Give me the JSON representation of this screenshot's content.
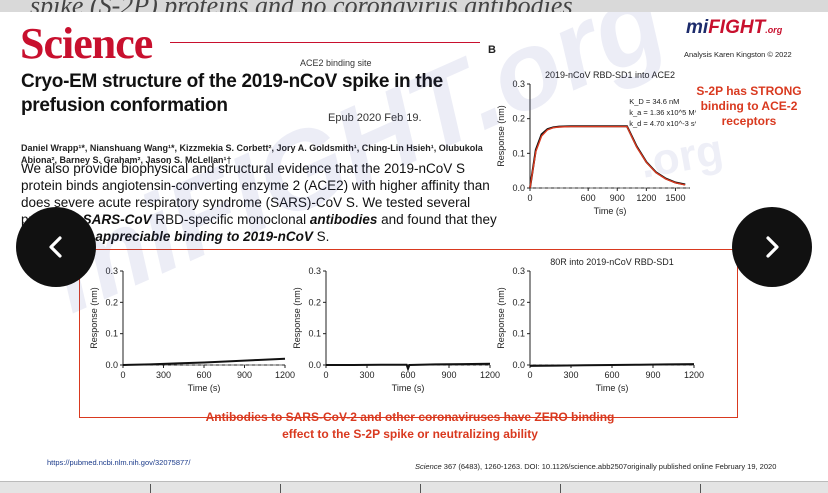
{
  "top_strip_text": "spike (S-2P) proteins and no coronavirus antibodies",
  "header": {
    "journal_logo": "Science",
    "ace2_label": "ACE2 binding site",
    "title": "Cryo-EM structure of the 2019-nCoV spike in the prefusion conformation",
    "epub": "Epub 2020 Feb 19.",
    "authors": "Daniel Wrapp¹*, Nianshuang Wang¹*, Kizzmekia S. Corbett², Jory A. Goldsmith¹, Ching-Lin Hsieh¹, Olubukola Abiona², Barney S. Graham², Jason S. McLellan¹†"
  },
  "abstract": {
    "part1": "We also provide biophysical and structural evidence that the 2019-nCoV S protein binds angiotensin-converting enzyme 2 (ACE2) with higher affinity than does severe acute respiratory syndrome (SARS)-CoV S. We tested several published ",
    "em1": "SARS-CoV",
    "part2": " RBD-specific monoclonal ",
    "em2": "antibodies",
    "part3": " and found that they do not have ",
    "em3": "appreciable binding to 2019-nCoV",
    "part4": " S."
  },
  "brand": {
    "prefix": "mi",
    "name": "FIGHT",
    "suffix": ".org",
    "analysis": "Analysis Karen Kingston © 2022"
  },
  "panel_label": "B",
  "annotations": {
    "strong_binding": "S-2P has STRONG binding to ACE-2 receptors",
    "zero_binding": "Antibodies to SARS-CoV-2 and other coronaviruses have ZERO binding effect to the S-2P spike or neutralizing ability"
  },
  "footer": {
    "pubmed_url": "https://pubmed.ncbi.nlm.nih.gov/32075877/",
    "citation_journal": "Science",
    "citation_rest": " 367 (6483), 1260-1263. DOI: 10.1126/science.abb2507originally published online February 19, 2020"
  },
  "watermark": {
    "main": "miFIGHT.org",
    "small": ".org"
  },
  "nav": {
    "prev_icon": "chevron-left-icon",
    "next_icon": "chevron-right-icon"
  },
  "chart_data": [
    {
      "type": "line",
      "title": "2019-nCoV RBD-SD1 into ACE2",
      "xlabel": "Time (s)",
      "ylabel": "Response (nm)",
      "xlim": [
        0,
        1650
      ],
      "ylim": [
        0,
        0.3
      ],
      "x_ticks": [
        0,
        600,
        900,
        1200,
        1500
      ],
      "y_ticks": [
        0.0,
        0.1,
        0.2,
        0.3
      ],
      "legend": [
        "K_D = 34.6 nM",
        "k_a = 1.36 x10^5 M^-1 s^-1",
        "k_d = 4.70 x10^-3 s^-1"
      ],
      "series": [
        {
          "name": "measured",
          "color": "#111111",
          "x": [
            0,
            60,
            120,
            180,
            240,
            300,
            420,
            600,
            800,
            1000,
            1100,
            1200,
            1300,
            1400,
            1500,
            1600
          ],
          "values": [
            0.0,
            0.11,
            0.155,
            0.17,
            0.175,
            0.177,
            0.178,
            0.178,
            0.178,
            0.178,
            0.12,
            0.075,
            0.045,
            0.027,
            0.016,
            0.01
          ]
        },
        {
          "name": "fit",
          "color": "#d9391f",
          "x": [
            0,
            60,
            120,
            180,
            240,
            300,
            420,
            600,
            800,
            1000,
            1100,
            1200,
            1300,
            1400,
            1500,
            1600
          ],
          "values": [
            0.0,
            0.105,
            0.15,
            0.168,
            0.174,
            0.176,
            0.177,
            0.177,
            0.177,
            0.177,
            0.118,
            0.074,
            0.044,
            0.026,
            0.015,
            0.009
          ]
        }
      ]
    },
    {
      "type": "line",
      "title": "",
      "xlabel": "Time (s)",
      "ylabel": "Response (nm)",
      "xlim": [
        0,
        1200
      ],
      "ylim": [
        0,
        0.3
      ],
      "x_ticks": [
        0,
        300,
        600,
        900,
        1200
      ],
      "y_ticks": [
        0.0,
        0.1,
        0.2,
        0.3
      ],
      "series": [
        {
          "name": "trace",
          "color": "#111111",
          "x": [
            0,
            200,
            400,
            600,
            800,
            1000,
            1200
          ],
          "values": [
            0.0,
            0.002,
            0.005,
            0.008,
            0.012,
            0.016,
            0.02
          ]
        }
      ]
    },
    {
      "type": "line",
      "title": "",
      "xlabel": "Time (s)",
      "ylabel": "Response (nm)",
      "xlim": [
        0,
        1200
      ],
      "ylim": [
        0,
        0.3
      ],
      "x_ticks": [
        0,
        300,
        600,
        900,
        1200
      ],
      "y_ticks": [
        0.0,
        0.1,
        0.2,
        0.3
      ],
      "series": [
        {
          "name": "trace",
          "color": "#111111",
          "x": [
            0,
            200,
            400,
            590,
            600,
            610,
            800,
            1000,
            1200
          ],
          "values": [
            0.0,
            0.0,
            0.001,
            0.001,
            -0.012,
            0.0,
            0.002,
            0.003,
            0.004
          ]
        }
      ]
    },
    {
      "type": "line",
      "title": "80R into 2019-nCoV RBD-SD1",
      "xlabel": "Time (s)",
      "ylabel": "Response (nm)",
      "xlim": [
        0,
        1200
      ],
      "ylim": [
        0,
        0.3
      ],
      "x_ticks": [
        0,
        300,
        600,
        900,
        1200
      ],
      "y_ticks": [
        0.0,
        0.1,
        0.2,
        0.3
      ],
      "series": [
        {
          "name": "trace",
          "color": "#111111",
          "x": [
            0,
            200,
            400,
            600,
            800,
            1000,
            1200
          ],
          "values": [
            -0.003,
            -0.002,
            -0.001,
            0.0,
            0.001,
            0.002,
            0.003
          ]
        }
      ]
    }
  ]
}
